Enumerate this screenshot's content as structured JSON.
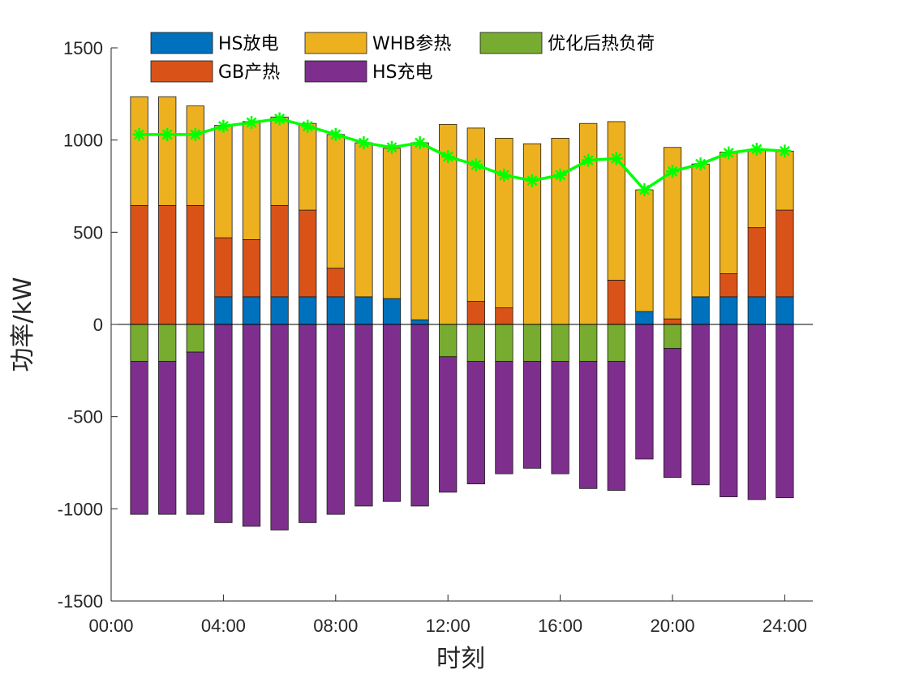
{
  "chart_data": {
    "type": "bar",
    "stacked": true,
    "xlabel": "时刻",
    "ylabel": "功率/kW",
    "ylim": [
      -1500,
      1500
    ],
    "yticks": [
      -1500,
      -1000,
      -500,
      0,
      500,
      1000,
      1500
    ],
    "xlim": [
      0,
      25
    ],
    "xticks": [
      0,
      4,
      8,
      12,
      16,
      20,
      24
    ],
    "xtick_labels": [
      "00:00",
      "04:00",
      "08:00",
      "12:00",
      "16:00",
      "20:00",
      "24:00"
    ],
    "hours": [
      1,
      2,
      3,
      4,
      5,
      6,
      7,
      8,
      9,
      10,
      11,
      12,
      13,
      14,
      15,
      16,
      17,
      18,
      19,
      20,
      21,
      22,
      23,
      24
    ],
    "legend_position": "top",
    "series": [
      {
        "key": "hs_dis",
        "name": "HS放电",
        "color": "#0072BD",
        "group": "positive",
        "values": [
          0,
          0,
          0,
          150,
          150,
          150,
          150,
          150,
          150,
          140,
          25,
          0,
          0,
          0,
          0,
          0,
          0,
          0,
          70,
          0,
          150,
          150,
          150,
          150
        ]
      },
      {
        "key": "gb",
        "name": "GB产热",
        "color": "#D95319",
        "group": "positive",
        "values": [
          645,
          645,
          645,
          320,
          310,
          495,
          470,
          155,
          0,
          0,
          0,
          0,
          125,
          90,
          0,
          0,
          0,
          240,
          0,
          30,
          0,
          125,
          375,
          470
        ]
      },
      {
        "key": "whb",
        "name": "WHB参热",
        "color": "#EDB120",
        "group": "positive",
        "values": [
          590,
          590,
          540,
          610,
          640,
          480,
          470,
          725,
          835,
          815,
          960,
          1085,
          940,
          920,
          980,
          1010,
          1090,
          860,
          660,
          930,
          720,
          660,
          425,
          320
        ]
      },
      {
        "key": "opt",
        "name": "优化后热负荷",
        "color": "#77AC30",
        "group": "negative",
        "values": [
          -200,
          -200,
          -150,
          0,
          0,
          0,
          0,
          0,
          0,
          0,
          0,
          -175,
          -200,
          -200,
          -200,
          -200,
          -200,
          -200,
          0,
          -130,
          0,
          0,
          0,
          0
        ]
      },
      {
        "key": "hs_chg",
        "name": "HS充电",
        "color": "#7E2F8E",
        "group": "negative",
        "values": [
          -830,
          -830,
          -880,
          -1075,
          -1095,
          -1115,
          -1075,
          -1030,
          -985,
          -960,
          -985,
          -735,
          -665,
          -610,
          -580,
          -610,
          -690,
          -700,
          -730,
          -700,
          -870,
          -935,
          -950,
          -940
        ]
      }
    ],
    "line": {
      "name": "热负荷",
      "color": "#00FF00",
      "values": [
        1030,
        1030,
        1030,
        1075,
        1095,
        1115,
        1075,
        1030,
        985,
        960,
        985,
        910,
        865,
        810,
        780,
        810,
        890,
        900,
        730,
        830,
        870,
        930,
        950,
        940
      ]
    },
    "legend": [
      {
        "name": "HS放电",
        "color": "#0072BD"
      },
      {
        "name": "WHB参热",
        "color": "#EDB120"
      },
      {
        "name": "优化后热负荷",
        "color": "#77AC30"
      },
      {
        "name": "GB产热",
        "color": "#D95319"
      },
      {
        "name": "HS充电",
        "color": "#7E2F8E"
      }
    ]
  }
}
